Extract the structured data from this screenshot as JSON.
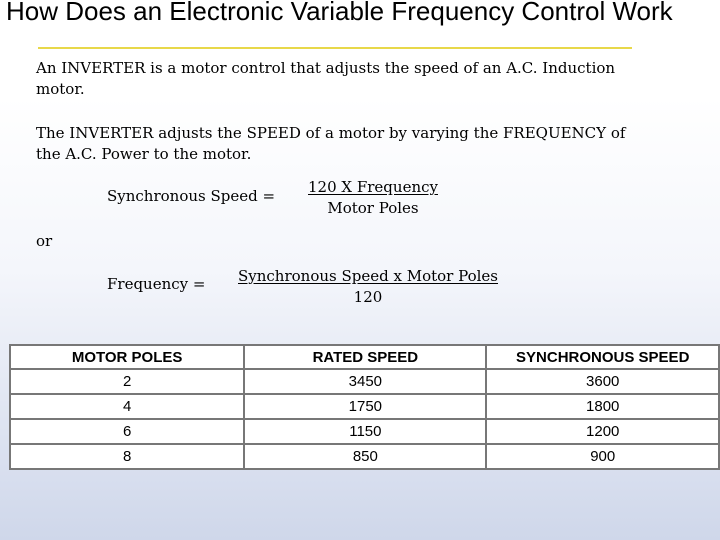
{
  "slide": {
    "title": "How Does an Electronic Variable Frequency Control Work",
    "paragraph1": "An INVERTER is a motor control that adjusts the speed of an A.C. Induction motor.",
    "paragraph2": "The INVERTER adjusts the SPEED of a motor by varying the FREQUENCY of the A.C. Power to the motor.",
    "equation1": {
      "label": "Synchronous Speed =",
      "numerator": "120 X Frequency",
      "denominator": "Motor Poles"
    },
    "or_text": "or",
    "equation2": {
      "label": "Frequency =",
      "numerator": "Synchronous Speed x Motor Poles",
      "denominator": "120"
    }
  },
  "table": {
    "headers": [
      "MOTOR POLES",
      "RATED SPEED",
      "SYNCHRONOUS SPEED"
    ],
    "rows": [
      [
        "2",
        "3450",
        "3600"
      ],
      [
        "4",
        "1750",
        "1800"
      ],
      [
        "6",
        "1150",
        "1200"
      ],
      [
        "8",
        "850",
        "900"
      ]
    ]
  },
  "colors": {
    "title_rule": "#e8d84a",
    "table_border": "#777777"
  }
}
